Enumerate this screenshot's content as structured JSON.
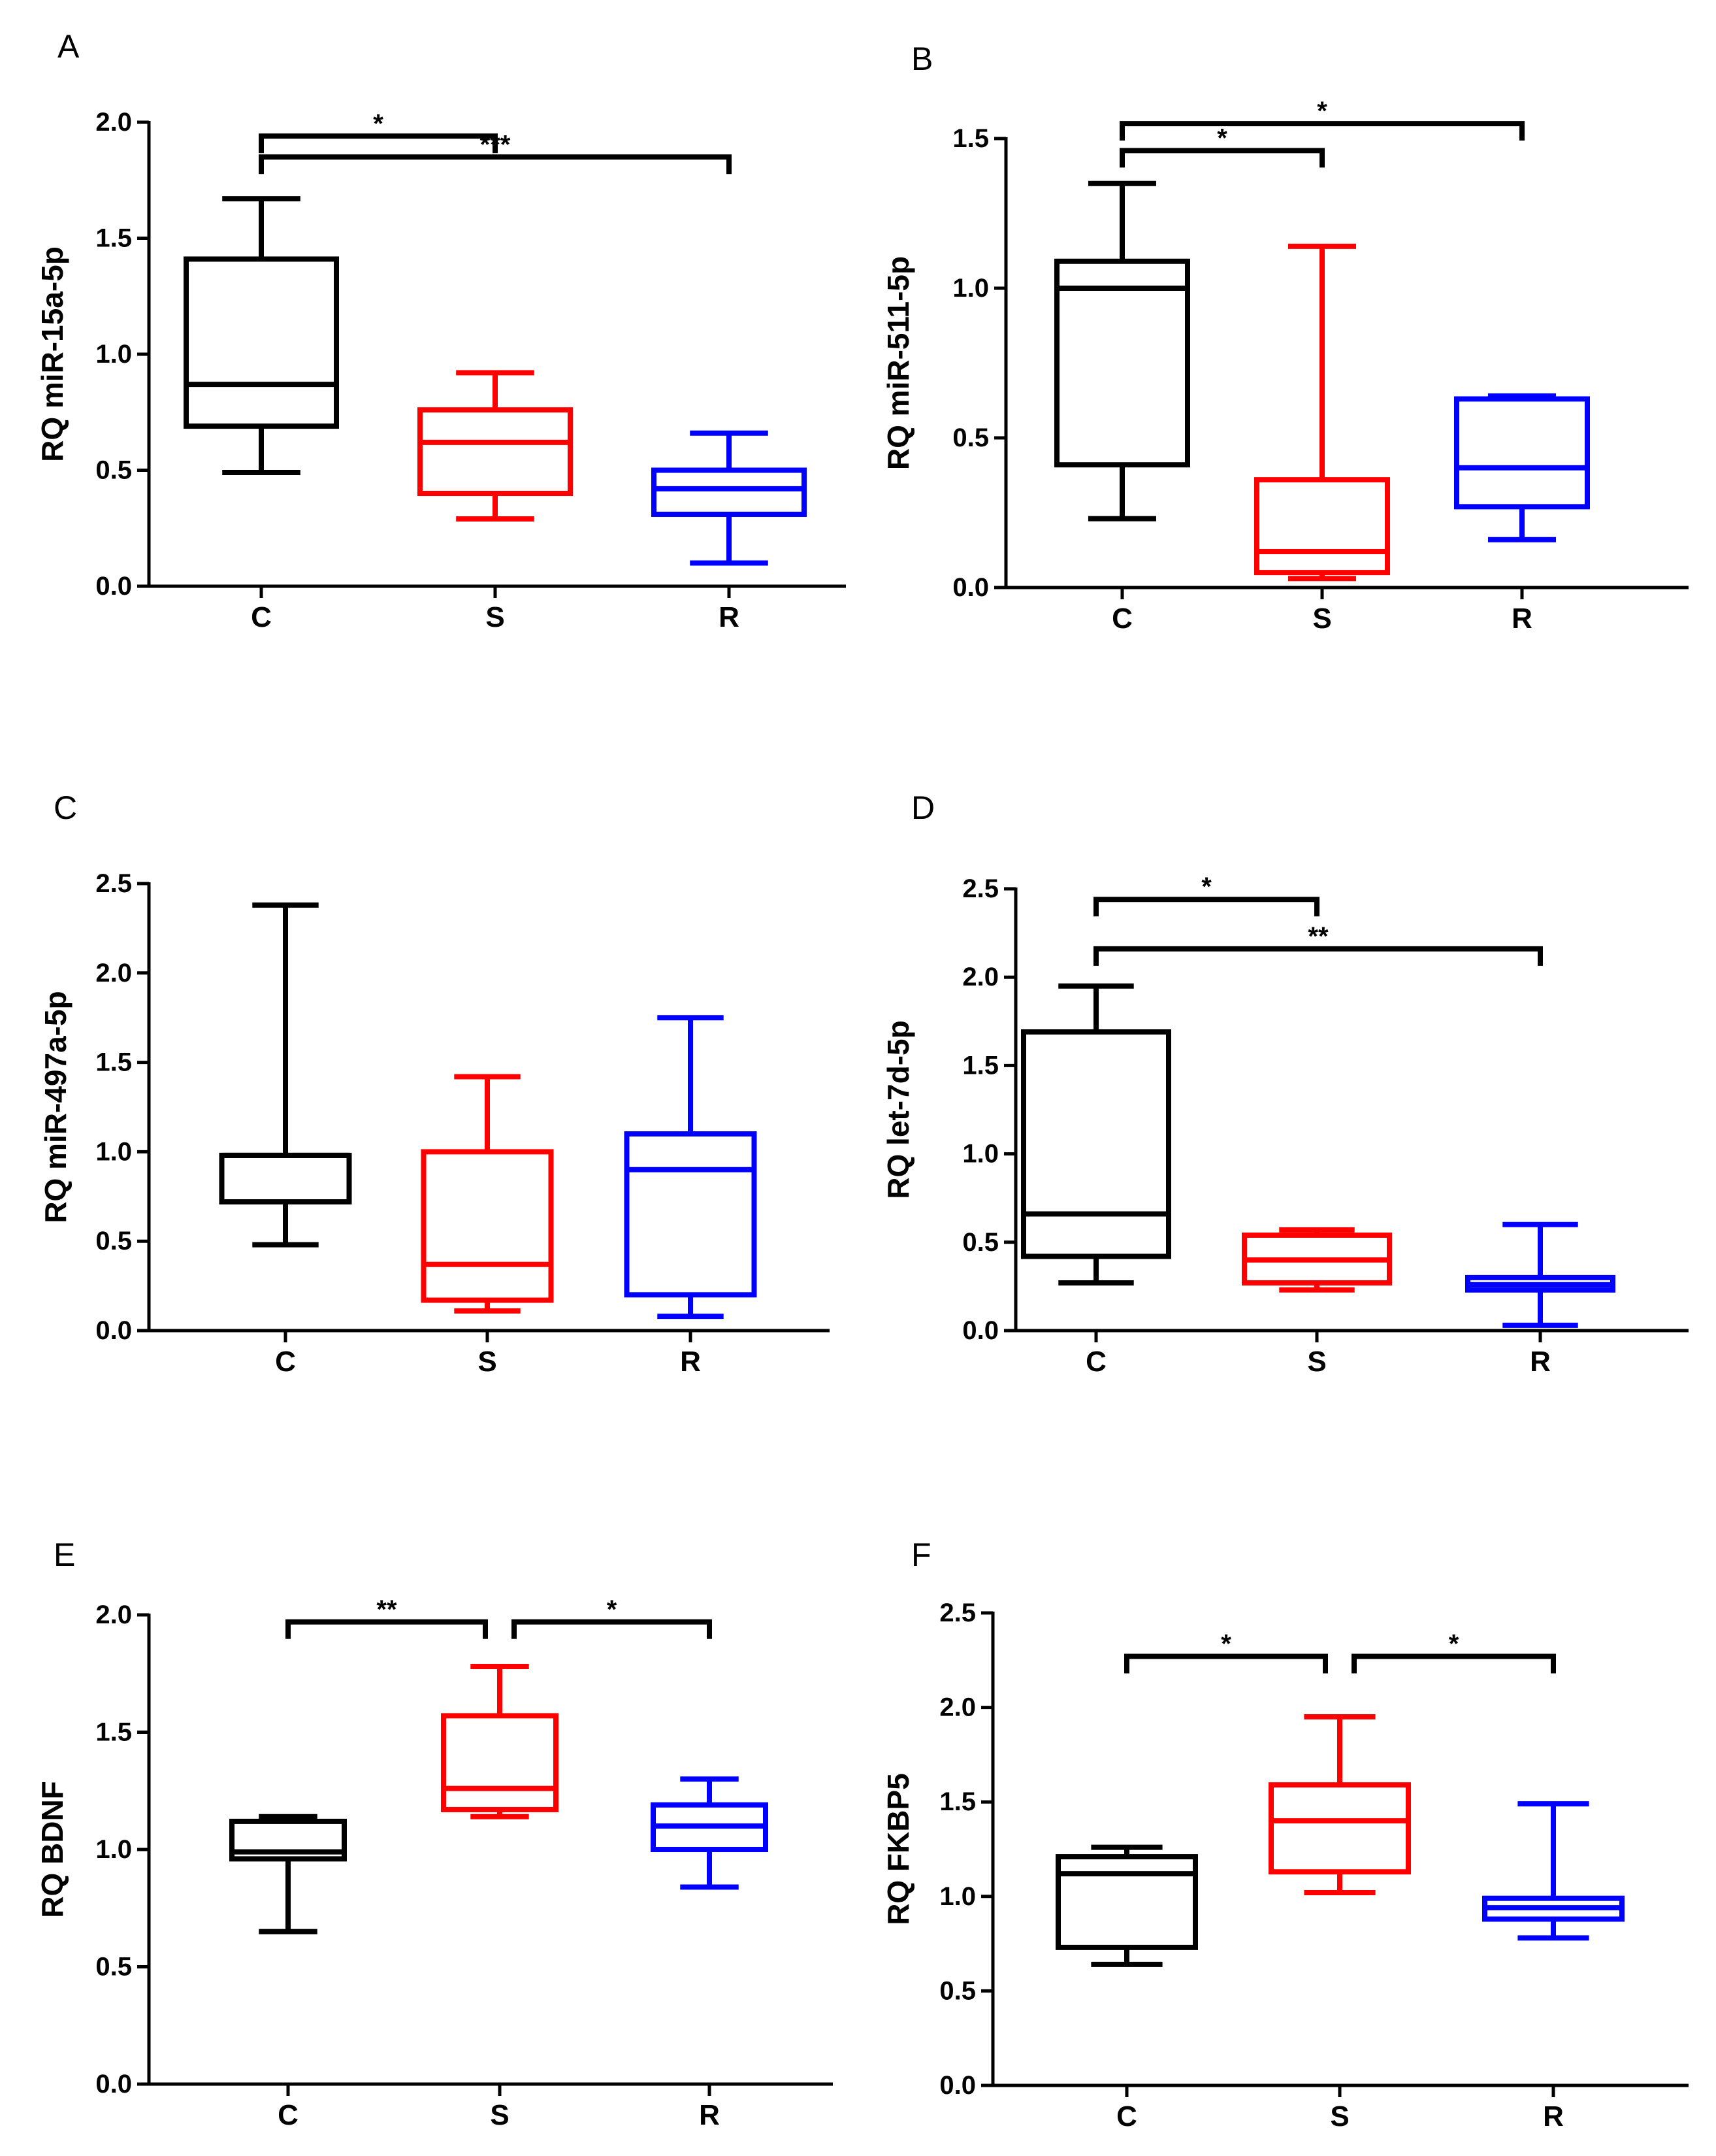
{
  "colors": {
    "C": "#000000",
    "S": "#ff0000",
    "R": "#0000ff"
  },
  "chart_data": [
    {
      "type": "box",
      "panel": "A",
      "ylabel": "RQ miR-15a-5p",
      "ylim": [
        0,
        2.0
      ],
      "yticks": [
        "0.0",
        "0.5",
        "1.0",
        "1.5",
        "2.0"
      ],
      "yticks_values": [
        0,
        0.5,
        1.0,
        1.5,
        2.0
      ],
      "categories": [
        "C",
        "S",
        "R"
      ],
      "boxes": [
        {
          "min": 0.49,
          "q1": 0.69,
          "median": 0.87,
          "q3": 1.41,
          "max": 1.67
        },
        {
          "min": 0.29,
          "q1": 0.4,
          "median": 0.62,
          "q3": 0.76,
          "max": 0.92
        },
        {
          "min": 0.1,
          "q1": 0.31,
          "median": 0.42,
          "q3": 0.5,
          "max": 0.66
        }
      ],
      "significance": [
        {
          "from": 0,
          "to": 1,
          "label": "*",
          "level": 1.94
        },
        {
          "from": 0,
          "to": 2,
          "label": "***",
          "level": 1.85
        }
      ]
    },
    {
      "type": "box",
      "panel": "B",
      "ylabel": "RQ miR-511-5p",
      "ylim": [
        0,
        1.5
      ],
      "yticks": [
        "0.0",
        "0.5",
        "1.0",
        "1.5"
      ],
      "yticks_values": [
        0,
        0.5,
        1.0,
        1.5
      ],
      "categories": [
        "C",
        "S",
        "R"
      ],
      "boxes": [
        {
          "min": 0.23,
          "q1": 0.41,
          "median": 1.0,
          "q3": 1.09,
          "max": 1.35
        },
        {
          "min": 0.03,
          "q1": 0.05,
          "median": 0.12,
          "q3": 0.36,
          "max": 1.14
        },
        {
          "min": 0.16,
          "q1": 0.27,
          "median": 0.4,
          "q3": 0.63,
          "max": 0.64
        }
      ],
      "significance": [
        {
          "from": 0,
          "to": 1,
          "label": "*",
          "level": 1.46
        },
        {
          "from": 0,
          "to": 2,
          "label": "*",
          "level": 1.55
        }
      ]
    },
    {
      "type": "box",
      "panel": "C",
      "ylabel": "RQ miR-497a-5p",
      "ylim": [
        0,
        2.5
      ],
      "yticks": [
        "0.0",
        "0.5",
        "1.0",
        "1.5",
        "2.0",
        "2.5"
      ],
      "yticks_values": [
        0,
        0.5,
        1.0,
        1.5,
        2.0,
        2.5
      ],
      "categories": [
        "C",
        "S",
        "R"
      ],
      "boxes": [
        {
          "min": 0.48,
          "q1": 0.72,
          "median": 0.98,
          "q3": 0.98,
          "max": 2.38
        },
        {
          "min": 0.11,
          "q1": 0.17,
          "median": 0.37,
          "q3": 1.0,
          "max": 1.42
        },
        {
          "min": 0.08,
          "q1": 0.2,
          "median": 0.9,
          "q3": 1.1,
          "max": 1.75
        }
      ],
      "significance": []
    },
    {
      "type": "box",
      "panel": "D",
      "ylabel": "RQ let-7d-5p",
      "ylim": [
        0,
        2.5
      ],
      "yticks": [
        "0.0",
        "0.5",
        "1.0",
        "1.5",
        "2.0",
        "2.5"
      ],
      "yticks_values": [
        0,
        0.5,
        1.0,
        1.5,
        2.0,
        2.5
      ],
      "categories": [
        "C",
        "S",
        "R"
      ],
      "boxes": [
        {
          "min": 0.27,
          "q1": 0.42,
          "median": 0.66,
          "q3": 1.69,
          "max": 1.95
        },
        {
          "min": 0.23,
          "q1": 0.27,
          "median": 0.4,
          "q3": 0.54,
          "max": 0.57
        },
        {
          "min": 0.03,
          "q1": 0.23,
          "median": 0.26,
          "q3": 0.3,
          "max": 0.6
        }
      ],
      "significance": [
        {
          "from": 0,
          "to": 1,
          "label": "*",
          "level": 2.44
        },
        {
          "from": 0,
          "to": 2,
          "label": "**",
          "level": 2.16
        }
      ]
    },
    {
      "type": "box",
      "panel": "E",
      "ylabel": "RQ BDNF",
      "ylim": [
        0,
        2.0
      ],
      "yticks": [
        "0.0",
        "0.5",
        "1.0",
        "1.5",
        "2.0"
      ],
      "yticks_values": [
        0,
        0.5,
        1.0,
        1.5,
        2.0
      ],
      "categories": [
        "C",
        "S",
        "R"
      ],
      "boxes": [
        {
          "min": 0.65,
          "q1": 0.96,
          "median": 0.99,
          "q3": 1.12,
          "max": 1.14
        },
        {
          "min": 1.14,
          "q1": 1.17,
          "median": 1.26,
          "q3": 1.57,
          "max": 1.78
        },
        {
          "min": 0.84,
          "q1": 1.0,
          "median": 1.1,
          "q3": 1.19,
          "max": 1.3
        }
      ],
      "significance": [
        {
          "from": 0,
          "to": 1,
          "label": "**",
          "level": 1.97
        },
        {
          "from": 1,
          "to": 2,
          "label": "*",
          "level": 1.97
        }
      ]
    },
    {
      "type": "box",
      "panel": "F",
      "ylabel": "RQ FKBP5",
      "ylim": [
        0,
        2.5
      ],
      "yticks": [
        "0.0",
        "0.5",
        "1.0",
        "1.5",
        "2.0",
        "2.5"
      ],
      "yticks_values": [
        0,
        0.5,
        1.0,
        1.5,
        2.0,
        2.5
      ],
      "categories": [
        "C",
        "S",
        "R"
      ],
      "boxes": [
        {
          "min": 0.64,
          "q1": 0.73,
          "median": 1.12,
          "q3": 1.21,
          "max": 1.26
        },
        {
          "min": 1.02,
          "q1": 1.13,
          "median": 1.4,
          "q3": 1.59,
          "max": 1.95
        },
        {
          "min": 0.78,
          "q1": 0.88,
          "median": 0.94,
          "q3": 0.99,
          "max": 1.49
        }
      ],
      "significance": [
        {
          "from": 0,
          "to": 1,
          "label": "*",
          "level": 2.27
        },
        {
          "from": 1,
          "to": 2,
          "label": "*",
          "level": 2.27
        }
      ]
    }
  ]
}
